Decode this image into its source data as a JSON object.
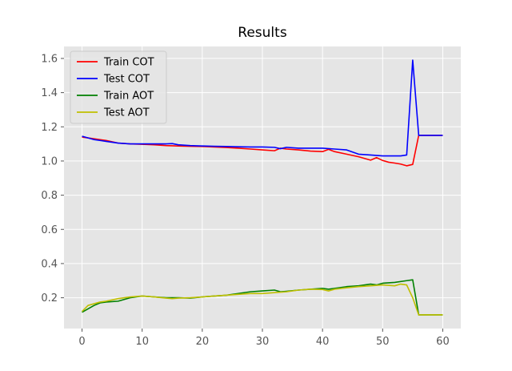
{
  "chart_data": {
    "type": "line",
    "title": "Results",
    "xlabel": "",
    "ylabel": "",
    "xlim": [
      -3,
      63
    ],
    "ylim": [
      0.02,
      1.67
    ],
    "x_ticks": [
      0,
      10,
      20,
      30,
      40,
      50,
      60
    ],
    "y_ticks": [
      0.2,
      0.4,
      0.6,
      0.8,
      1.0,
      1.2,
      1.4,
      1.6
    ],
    "grid": true,
    "legend_position": "top-left",
    "series": [
      {
        "name": "Train COT",
        "color": "#ff0000",
        "x": [
          0,
          2,
          4,
          6,
          8,
          10,
          12,
          14,
          16,
          18,
          20,
          22,
          24,
          26,
          28,
          30,
          32,
          33,
          34,
          36,
          38,
          40,
          41,
          42,
          44,
          46,
          48,
          49,
          50,
          51,
          52,
          53,
          54,
          55,
          56,
          57,
          58,
          59,
          60
        ],
        "y": [
          1.14,
          1.13,
          1.12,
          1.105,
          1.1,
          1.098,
          1.095,
          1.09,
          1.088,
          1.086,
          1.085,
          1.082,
          1.079,
          1.075,
          1.07,
          1.065,
          1.06,
          1.075,
          1.07,
          1.065,
          1.058,
          1.055,
          1.068,
          1.055,
          1.04,
          1.025,
          1.005,
          1.02,
          1.003,
          0.993,
          0.988,
          0.982,
          0.972,
          0.98,
          1.15,
          1.15,
          1.15,
          1.15,
          1.15
        ]
      },
      {
        "name": "Test COT",
        "color": "#0000ff",
        "x": [
          0,
          2,
          4,
          6,
          8,
          10,
          12,
          14,
          15,
          16,
          18,
          20,
          22,
          24,
          26,
          28,
          30,
          32,
          33,
          34,
          36,
          38,
          40,
          42,
          44,
          46,
          48,
          50,
          52,
          53,
          54,
          55,
          56,
          57,
          58,
          59,
          60
        ],
        "y": [
          1.145,
          1.125,
          1.115,
          1.105,
          1.1,
          1.1,
          1.1,
          1.1,
          1.102,
          1.095,
          1.09,
          1.088,
          1.086,
          1.085,
          1.083,
          1.082,
          1.082,
          1.08,
          1.072,
          1.08,
          1.075,
          1.075,
          1.075,
          1.07,
          1.065,
          1.04,
          1.035,
          1.03,
          1.03,
          1.03,
          1.035,
          1.59,
          1.15,
          1.15,
          1.15,
          1.15,
          1.15
        ]
      },
      {
        "name": "Train AOT",
        "color": "#008000",
        "x": [
          0,
          2,
          3,
          4,
          6,
          8,
          10,
          12,
          14,
          16,
          18,
          20,
          22,
          24,
          26,
          28,
          30,
          32,
          33,
          34,
          36,
          38,
          40,
          41,
          42,
          44,
          46,
          48,
          49,
          50,
          52,
          54,
          55,
          56,
          57,
          58,
          59,
          60
        ],
        "y": [
          0.115,
          0.155,
          0.17,
          0.175,
          0.18,
          0.2,
          0.21,
          0.205,
          0.2,
          0.2,
          0.198,
          0.205,
          0.21,
          0.215,
          0.225,
          0.235,
          0.24,
          0.245,
          0.235,
          0.238,
          0.245,
          0.25,
          0.255,
          0.25,
          0.255,
          0.265,
          0.27,
          0.28,
          0.275,
          0.285,
          0.29,
          0.3,
          0.305,
          0.1,
          0.1,
          0.1,
          0.1,
          0.1
        ]
      },
      {
        "name": "Test AOT",
        "color": "#bfbf00",
        "x": [
          0,
          1,
          2,
          3,
          4,
          6,
          8,
          10,
          12,
          14,
          15,
          16,
          18,
          20,
          22,
          24,
          26,
          28,
          30,
          32,
          34,
          36,
          38,
          40,
          41,
          42,
          44,
          46,
          48,
          50,
          52,
          53,
          54,
          55,
          56,
          57,
          58,
          59,
          60
        ],
        "y": [
          0.12,
          0.155,
          0.165,
          0.175,
          0.18,
          0.195,
          0.205,
          0.21,
          0.205,
          0.198,
          0.195,
          0.198,
          0.2,
          0.205,
          0.21,
          0.215,
          0.22,
          0.225,
          0.225,
          0.23,
          0.235,
          0.245,
          0.25,
          0.248,
          0.24,
          0.25,
          0.258,
          0.265,
          0.27,
          0.275,
          0.27,
          0.28,
          0.275,
          0.2,
          0.1,
          0.1,
          0.1,
          0.1,
          0.1
        ]
      }
    ]
  }
}
